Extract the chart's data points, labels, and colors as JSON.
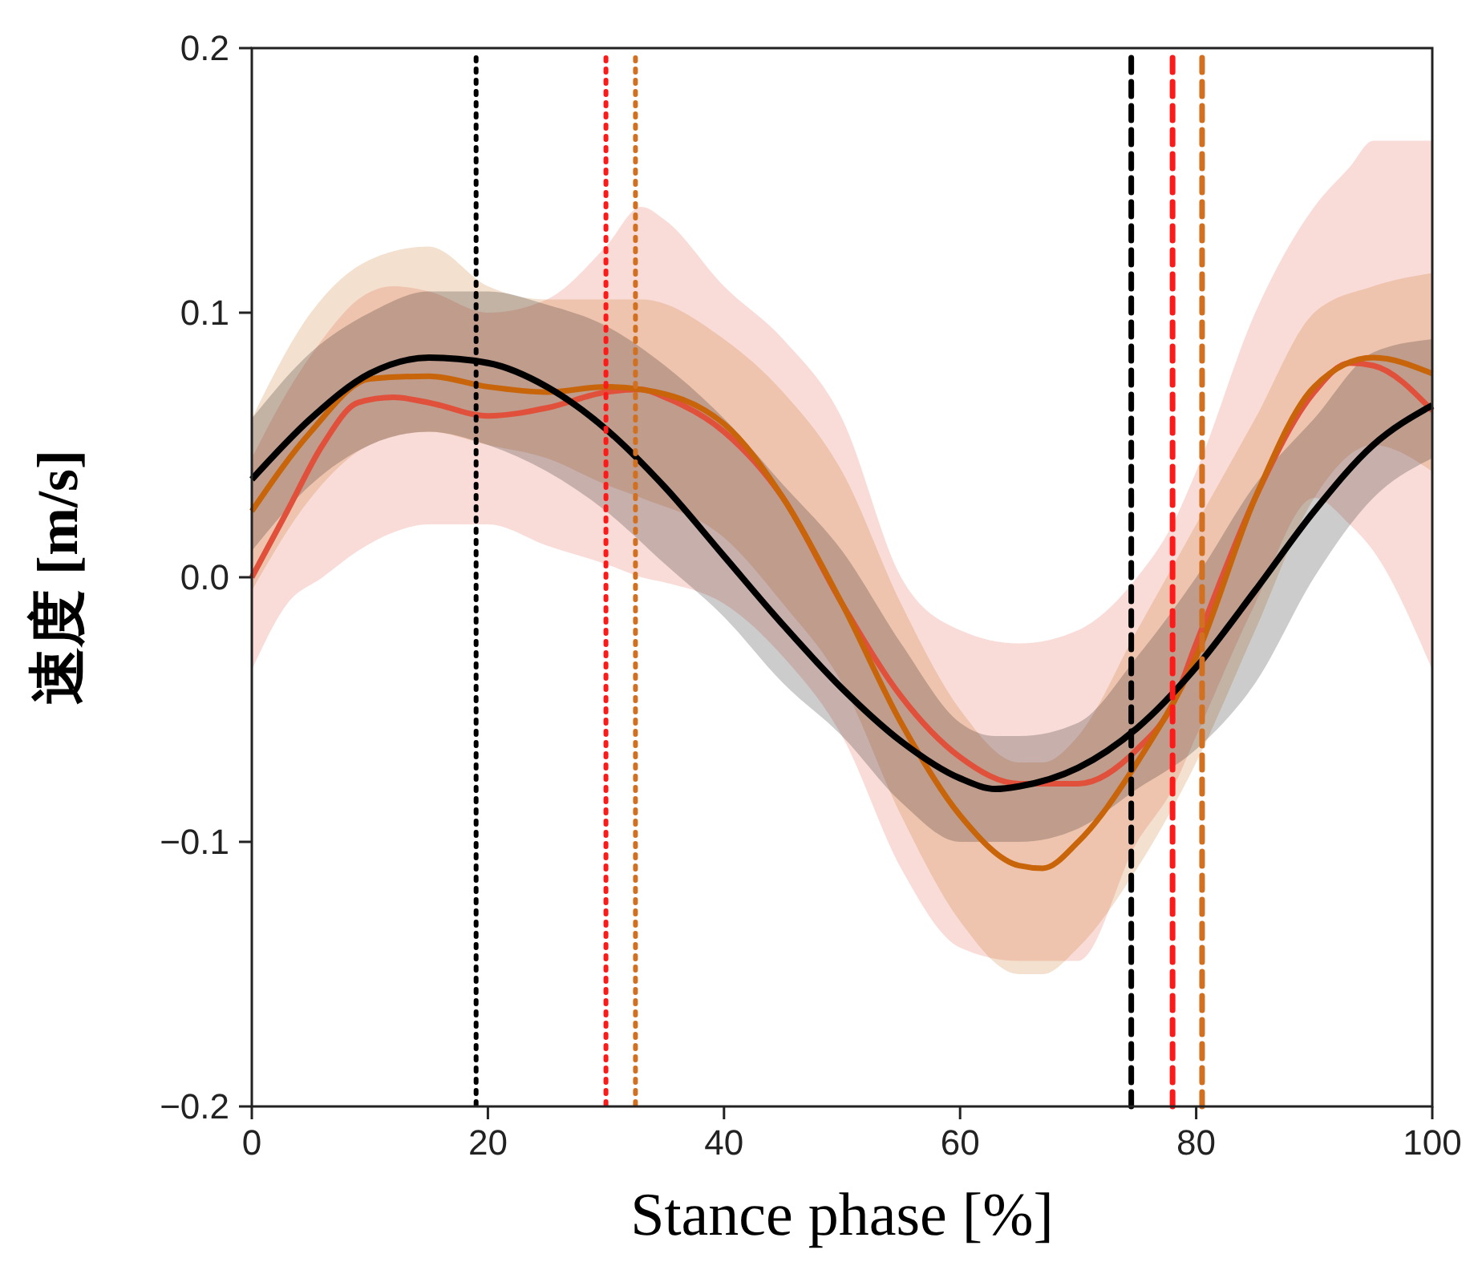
{
  "chart_data": {
    "type": "line",
    "xlabel": "Stance phase [%]",
    "ylabel": "速度 [m/s]",
    "xlim": [
      0,
      100
    ],
    "ylim": [
      -0.2,
      0.2
    ],
    "xticks": [
      0,
      20,
      40,
      60,
      80,
      100
    ],
    "yticks": [
      {
        "value": -0.2,
        "label": "−0.2"
      },
      {
        "value": -0.1,
        "label": "−0.1"
      },
      {
        "value": 0,
        "label": "0.0"
      },
      {
        "value": 0.1,
        "label": "0.1"
      },
      {
        "value": 0.2,
        "label": "0.2"
      }
    ],
    "grid": false,
    "line_style": "solid",
    "marker": "none",
    "series": [
      {
        "color": "#e0503a",
        "x": [
          0,
          3,
          6,
          9,
          12,
          15,
          20,
          25,
          30,
          33,
          35,
          40,
          45,
          50,
          55,
          60,
          65,
          70,
          75,
          78,
          80,
          85,
          90,
          93,
          95,
          100
        ],
        "values": [
          0.0,
          0.025,
          0.05,
          0.066,
          0.068,
          0.066,
          0.061,
          0.064,
          0.07,
          0.071,
          0.068,
          0.055,
          0.03,
          -0.01,
          -0.045,
          -0.068,
          -0.078,
          -0.078,
          -0.065,
          -0.048,
          -0.025,
          0.03,
          0.07,
          0.081,
          0.08,
          0.063
        ],
        "lower": [
          -0.035,
          -0.01,
          0.0,
          0.01,
          0.017,
          0.02,
          0.02,
          0.012,
          0.005,
          0.0,
          -0.002,
          -0.01,
          -0.03,
          -0.06,
          -0.11,
          -0.14,
          -0.145,
          -0.145,
          -0.1,
          -0.08,
          -0.06,
          -0.01,
          0.03,
          0.02,
          0.01,
          -0.035
        ],
        "upper": [
          0.045,
          0.07,
          0.09,
          0.105,
          0.11,
          0.108,
          0.1,
          0.105,
          0.125,
          0.14,
          0.135,
          0.11,
          0.09,
          0.06,
          0.0,
          -0.02,
          -0.025,
          -0.02,
          0.0,
          0.02,
          0.04,
          0.1,
          0.14,
          0.155,
          0.165,
          0.165
        ]
      },
      {
        "color": "#c8640a",
        "x": [
          0,
          5,
          10,
          15,
          20,
          25,
          30,
          33,
          40,
          45,
          50,
          55,
          60,
          65,
          67,
          70,
          75,
          80,
          85,
          90,
          95,
          100
        ],
        "values": [
          0.025,
          0.055,
          0.075,
          0.076,
          0.072,
          0.07,
          0.072,
          0.071,
          0.058,
          0.03,
          -0.01,
          -0.055,
          -0.09,
          -0.109,
          -0.11,
          -0.1,
          -0.07,
          -0.03,
          0.03,
          0.072,
          0.083,
          0.077
        ],
        "lower": [
          -0.005,
          0.03,
          0.05,
          0.055,
          0.05,
          0.045,
          0.035,
          0.03,
          0.015,
          -0.01,
          -0.04,
          -0.09,
          -0.13,
          -0.15,
          -0.15,
          -0.14,
          -0.11,
          -0.07,
          -0.02,
          0.03,
          0.05,
          0.04
        ],
        "upper": [
          0.06,
          0.1,
          0.12,
          0.125,
          0.11,
          0.105,
          0.105,
          0.105,
          0.09,
          0.07,
          0.04,
          -0.01,
          -0.05,
          -0.07,
          -0.07,
          -0.06,
          -0.02,
          0.02,
          0.06,
          0.1,
          0.11,
          0.115
        ]
      },
      {
        "color": "#000000",
        "x": [
          0,
          5,
          10,
          15,
          20,
          25,
          30,
          35,
          40,
          45,
          50,
          55,
          60,
          63,
          65,
          70,
          75,
          80,
          85,
          90,
          95,
          100
        ],
        "values": [
          0.037,
          0.06,
          0.077,
          0.083,
          0.081,
          0.072,
          0.056,
          0.034,
          0.008,
          -0.018,
          -0.042,
          -0.062,
          -0.076,
          -0.08,
          -0.079,
          -0.072,
          -0.057,
          -0.034,
          -0.005,
          0.025,
          0.05,
          0.065
        ],
        "lower": [
          0.01,
          0.035,
          0.05,
          0.055,
          0.05,
          0.04,
          0.025,
          0.005,
          -0.015,
          -0.04,
          -0.06,
          -0.085,
          -0.1,
          -0.1,
          -0.1,
          -0.095,
          -0.08,
          -0.065,
          -0.04,
          0.0,
          0.03,
          0.045
        ],
        "upper": [
          0.06,
          0.085,
          0.1,
          0.108,
          0.108,
          0.103,
          0.095,
          0.08,
          0.06,
          0.035,
          0.01,
          -0.025,
          -0.055,
          -0.06,
          -0.06,
          -0.055,
          -0.03,
          0.0,
          0.035,
          0.06,
          0.085,
          0.09
        ]
      }
    ],
    "ref_lines": [
      {
        "axis": "x",
        "value": 19,
        "color": "#000000",
        "line_style": "dotted"
      },
      {
        "axis": "x",
        "value": 30,
        "color": "#ff1a1a",
        "line_style": "dotted"
      },
      {
        "axis": "x",
        "value": 32.5,
        "color": "#d07020",
        "line_style": "dotted"
      },
      {
        "axis": "x",
        "value": 74.5,
        "color": "#000000",
        "line_style": "dashed"
      },
      {
        "axis": "x",
        "value": 78,
        "color": "#ff1a1a",
        "line_style": "dashed"
      },
      {
        "axis": "x",
        "value": 80.5,
        "color": "#d07020",
        "line_style": "dashed"
      }
    ]
  }
}
